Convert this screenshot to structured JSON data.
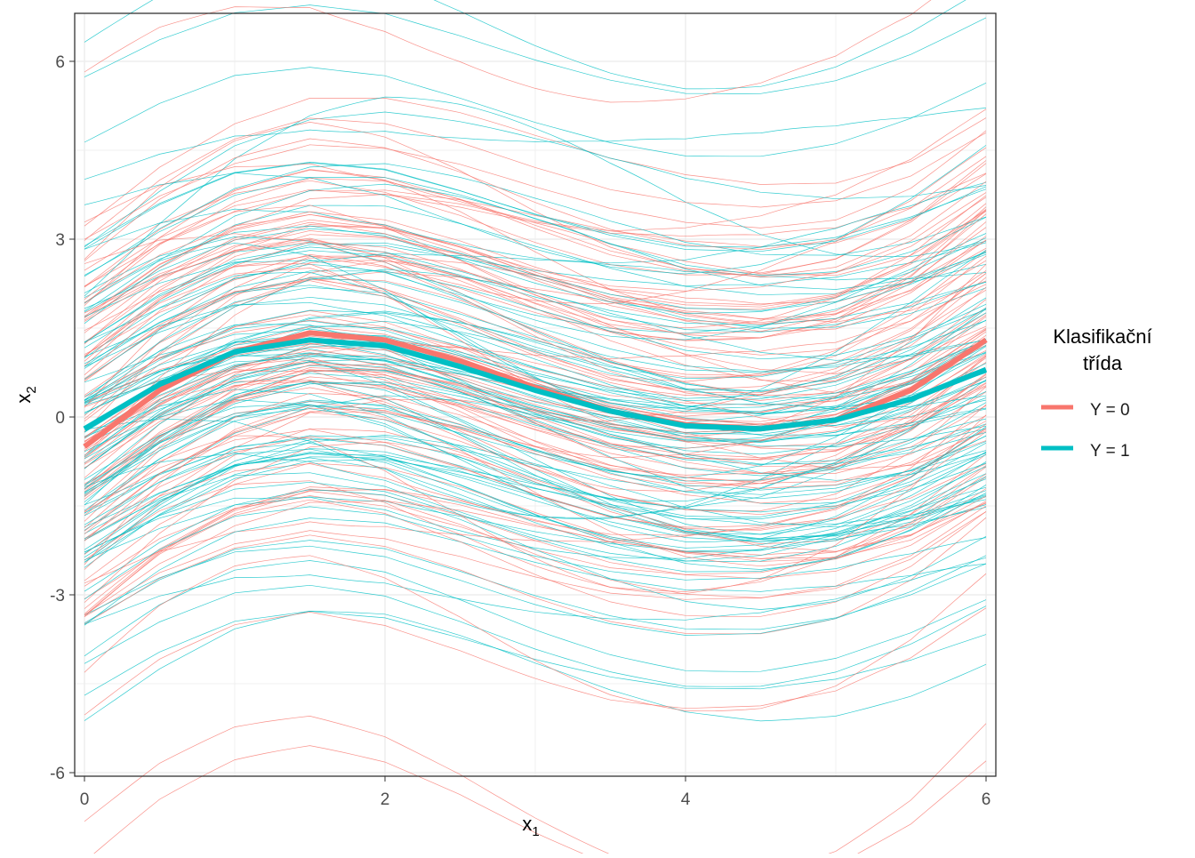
{
  "chart_data": {
    "type": "line",
    "title": "",
    "xlabel": "x",
    "xlabel_sub": "1",
    "ylabel": "x",
    "ylabel_sub": "2",
    "xlim": [
      0,
      6
    ],
    "ylim": [
      -6,
      6.8
    ],
    "x_ticks": [
      0,
      2,
      4,
      6
    ],
    "x_tick_labels": [
      "0",
      "2",
      "4",
      "6"
    ],
    "y_ticks": [
      -6,
      -3,
      0,
      3,
      6
    ],
    "y_tick_labels": [
      "-6",
      "-3",
      "0",
      "3",
      "6"
    ],
    "grid": true,
    "legend": {
      "title_line1": "Klasifikační",
      "title_line2": "třída",
      "placement": "right",
      "entries": [
        "Y = 0",
        "Y = 1"
      ]
    },
    "colors": {
      "Y0": "#F8766D",
      "Y1": "#00BFC4"
    },
    "mean_x": [
      0,
      0.5,
      1,
      1.5,
      2,
      2.5,
      3,
      3.5,
      4,
      4.5,
      5,
      5.5,
      6
    ],
    "series": [
      {
        "name": "Y = 0",
        "kind": "mean",
        "values": [
          -0.5,
          0.45,
          1.1,
          1.42,
          1.3,
          0.95,
          0.5,
          0.1,
          -0.13,
          -0.2,
          -0.05,
          0.45,
          1.3
        ]
      },
      {
        "name": "Y = 1",
        "kind": "mean",
        "values": [
          -0.2,
          0.55,
          1.1,
          1.3,
          1.2,
          0.85,
          0.45,
          0.1,
          -0.15,
          -0.2,
          -0.05,
          0.3,
          0.8
        ]
      }
    ],
    "individual_curves_per_class": 100
  }
}
